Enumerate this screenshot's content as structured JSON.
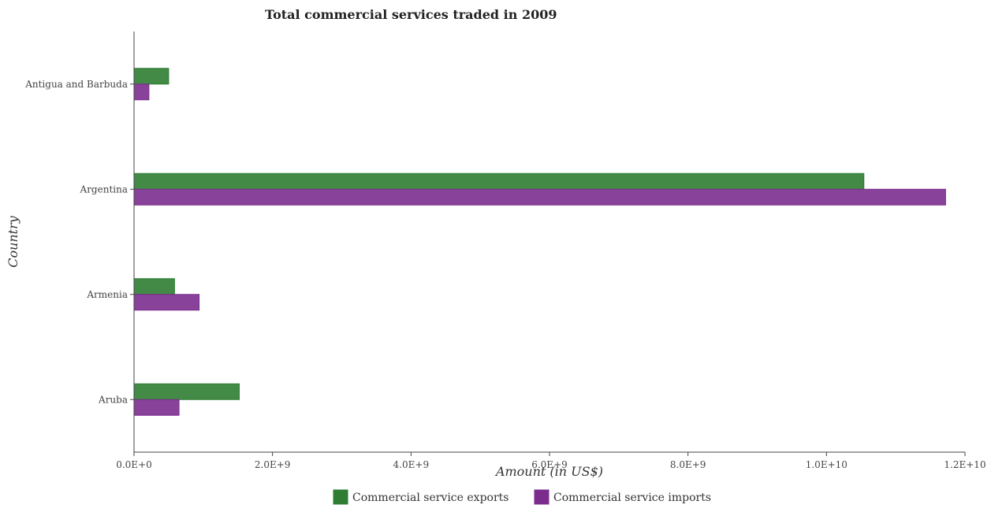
{
  "chart_data": {
    "type": "bar",
    "orientation": "horizontal",
    "title": "Total commercial services traded in 2009",
    "xlabel": "Amount (in US$)",
    "ylabel": "Country",
    "categories": [
      "Antigua and Barbuda",
      "Argentina",
      "Armenia",
      "Aruba"
    ],
    "series": [
      {
        "name": "Commercial service exports",
        "color": "#2e7d32",
        "values": [
          500000000,
          10540000000,
          585000000,
          1520000000
        ]
      },
      {
        "name": "Commercial service imports",
        "color": "#7b2d8e",
        "values": [
          215000000,
          11720000000,
          940000000,
          650000000
        ]
      }
    ],
    "xlim": [
      0,
      12000000000
    ],
    "xticks": [
      0,
      2000000000,
      4000000000,
      6000000000,
      8000000000,
      10000000000,
      12000000000
    ],
    "xtick_labels": [
      "0.0E+0",
      "2.0E+9",
      "4.0E+9",
      "6.0E+9",
      "8.0E+9",
      "1.0E+10",
      "1.2E+10"
    ],
    "legend_position": "bottom",
    "grid": false
  }
}
